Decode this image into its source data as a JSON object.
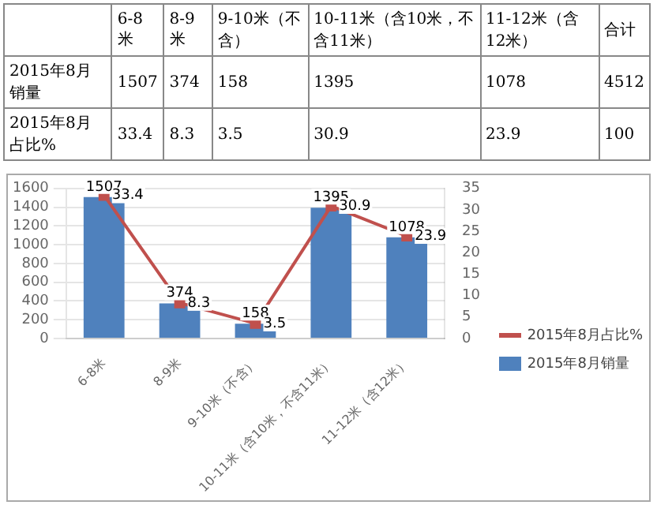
{
  "chart_data": [
    {
      "type": "other",
      "categories": [
        "6-8米",
        "8-9米",
        "9-10米（不含）",
        "10-11米（含10米，不含11米）",
        "11-12米（含12米）",
        "合计"
      ],
      "y_categories": [
        "2015年8月销量",
        "2015年8月占比%"
      ],
      "cell_labels": [
        [
          "1507",
          "374",
          "158",
          "1395",
          "1078",
          "4512"
        ],
        [
          "33.4",
          "8.3",
          "3.5",
          "30.9",
          "23.9",
          "100"
        ]
      ]
    },
    {
      "type": "bar",
      "categories": [
        "6-8米",
        "8-9米",
        "9-10米（不含）",
        "10-11米（含10米，不含11米）",
        "11-12米（含12米）"
      ],
      "series": [
        {
          "name": "2015年8月销量",
          "color": "#4f81bd",
          "values": [
            1507,
            374,
            158,
            1395,
            1078
          ]
        },
        {
          "name": "2015年8月占比%",
          "type": "line",
          "axis": "y2",
          "color": "#c0504d",
          "values": [
            33.4,
            8.3,
            3.5,
            30.9,
            23.9
          ]
        }
      ],
      "ylim": [
        0,
        1600
      ],
      "yticks": [
        0,
        200,
        400,
        600,
        800,
        1000,
        1200,
        1400,
        1600
      ],
      "y2lim": [
        0,
        35
      ],
      "y2ticks": [
        0,
        5,
        10,
        15,
        20,
        25,
        30,
        35
      ],
      "grid": "y",
      "legend": "right",
      "marker": "square",
      "data_labels": true
    }
  ]
}
